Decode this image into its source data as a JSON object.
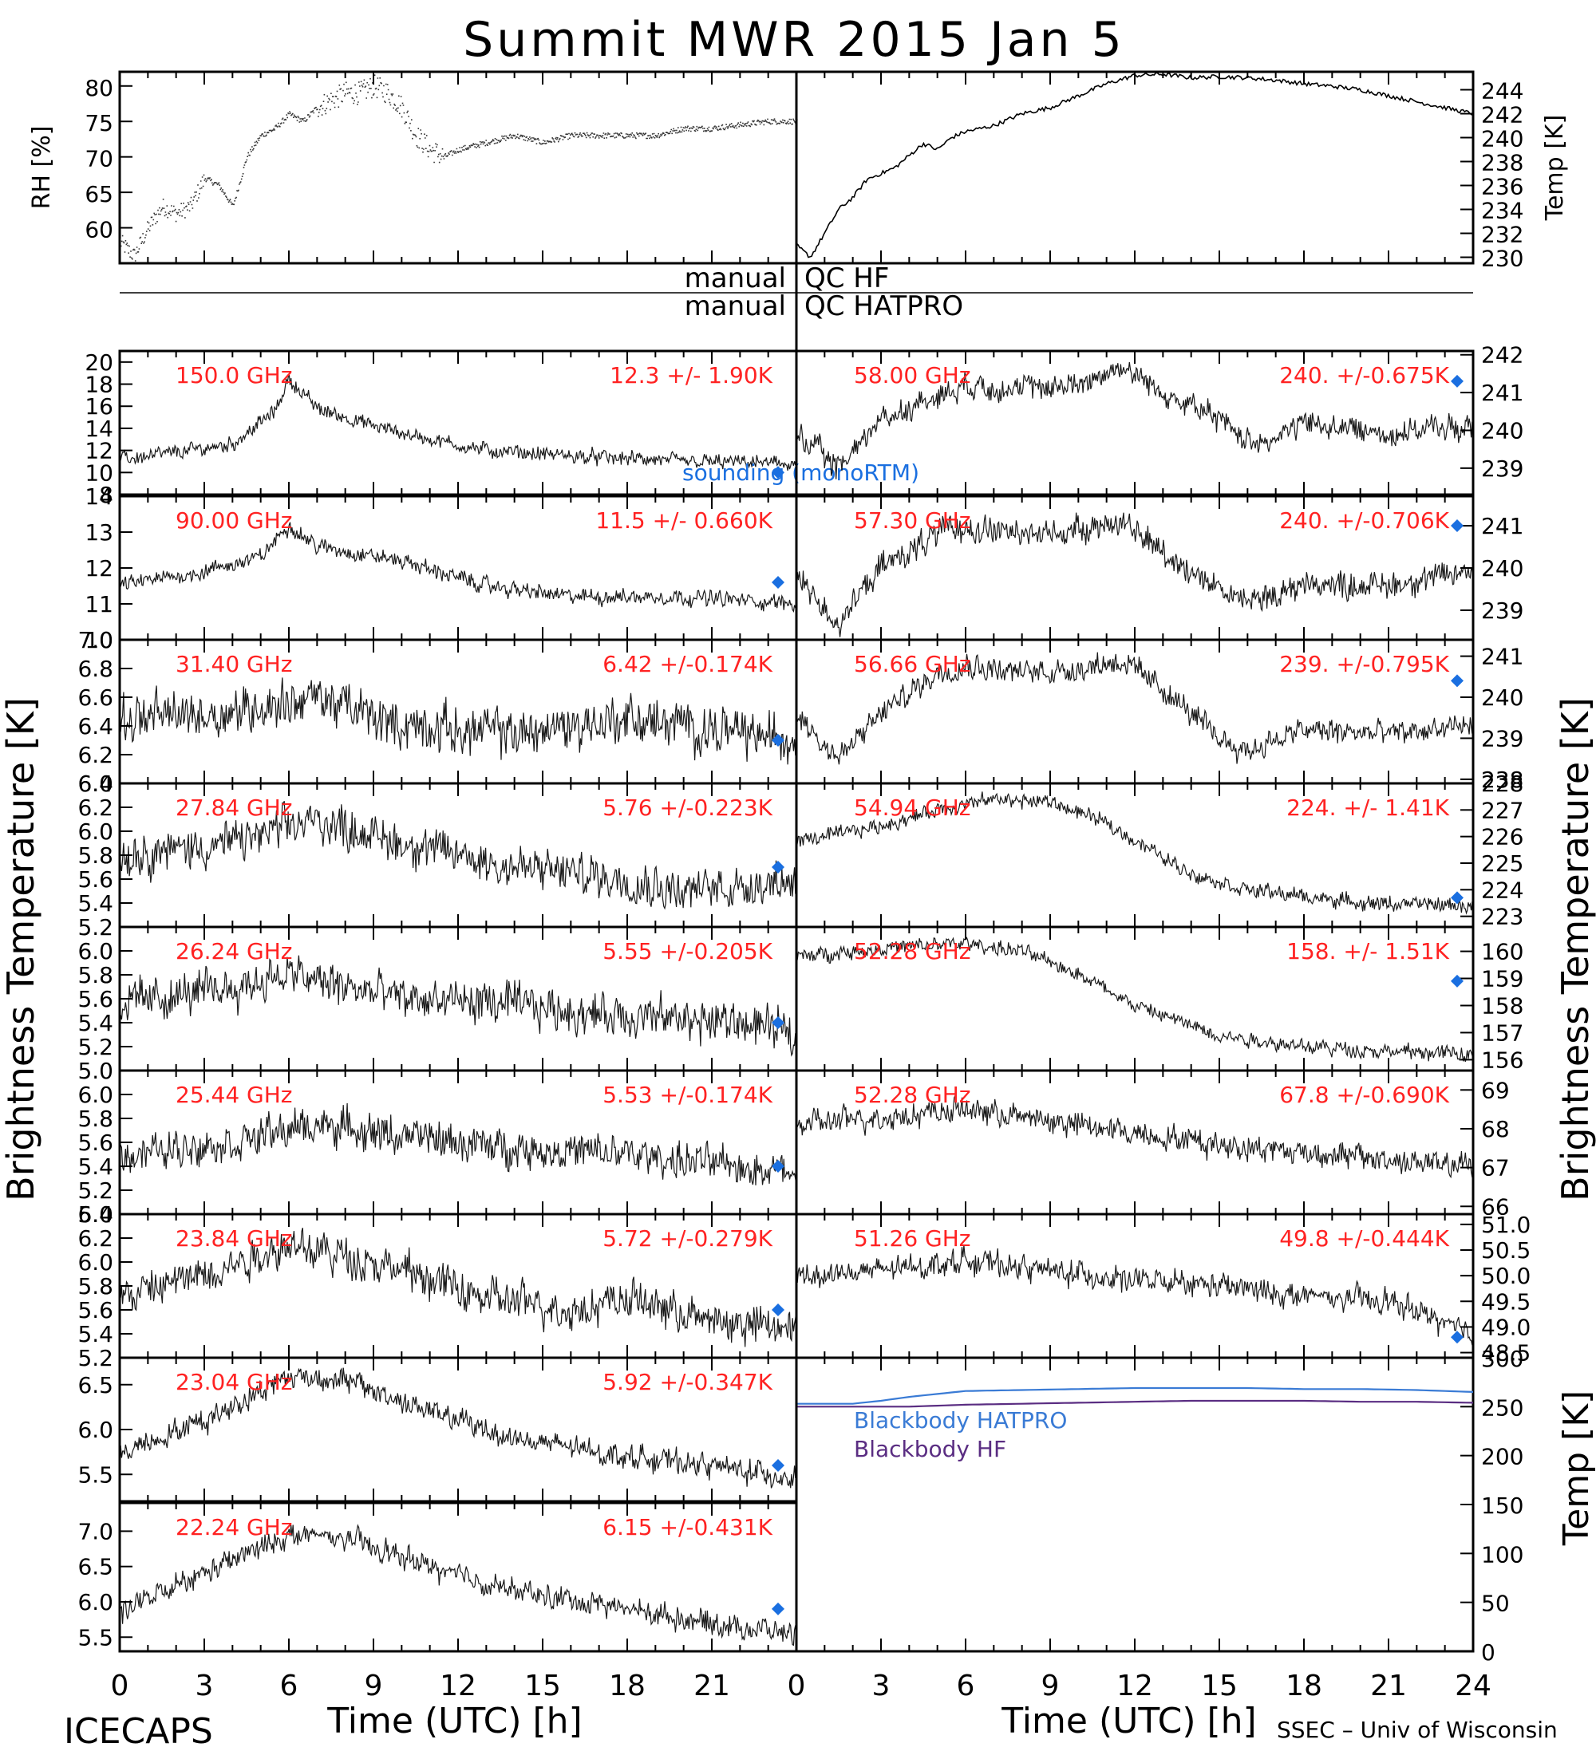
{
  "figure": {
    "title": "Summit MWR 2015 Jan  5",
    "left_footer": "ICECAPS",
    "right_footer": "SSEC – Univ of Wisconsin",
    "x_label": "Time (UTC) [h]",
    "bt_label": "Brightness Temperature [K]",
    "bb_temp_label": "Temp [K]",
    "qc_hf_left": "manual",
    "qc_hf_right": "QC HF",
    "qc_hatpro_left": "manual",
    "qc_hatpro_right": "QC HATPRO",
    "sounding_label": "sounding (monoRTM)",
    "colors": {
      "data": "#000000",
      "annotation": "#ff2222",
      "sounding": "#1a6fe0",
      "hatpro": "#3a7bd5",
      "hf": "#5a2d82"
    }
  },
  "chart_data": [
    {
      "id": "rh",
      "type": "scatter",
      "ylabel": "RH [%]",
      "ylim": [
        55,
        82
      ],
      "yticks": [
        60,
        65,
        70,
        75,
        80
      ],
      "xlim": [
        0,
        24
      ],
      "x": [
        0,
        0.5,
        1,
        1.5,
        2,
        2.5,
        3,
        3.5,
        4,
        4.5,
        5,
        5.5,
        6,
        6.5,
        7,
        7.5,
        8,
        8.5,
        9,
        9.5,
        10,
        10.5,
        11,
        11.5,
        12,
        13,
        14,
        15,
        16,
        17,
        18,
        19,
        20,
        21,
        22,
        23,
        24
      ],
      "values": [
        58,
        56,
        60,
        63,
        62,
        63,
        67,
        66,
        63,
        70,
        73,
        74,
        76,
        75,
        77,
        78,
        79,
        79,
        80,
        79,
        77,
        73,
        71,
        70,
        71,
        72,
        73,
        72,
        73,
        73,
        73,
        73,
        74,
        74,
        74.5,
        75,
        75
      ]
    },
    {
      "id": "temp",
      "type": "line",
      "ylabel": "Temp [K]",
      "ylim": [
        229.5,
        245.5
      ],
      "yticks": [
        230,
        232,
        234,
        236,
        238,
        240,
        242,
        244
      ],
      "xlim": [
        0,
        24
      ],
      "x": [
        0,
        0.5,
        1,
        1.5,
        2,
        2.5,
        3,
        3.5,
        4,
        4.5,
        5,
        5.5,
        6,
        7,
        8,
        9,
        10,
        11,
        12,
        13,
        14,
        15,
        16,
        17,
        18,
        19,
        20,
        21,
        22,
        23,
        24
      ],
      "values": [
        231,
        230,
        232,
        234,
        235,
        236.5,
        237,
        237.5,
        238.5,
        239.5,
        239,
        240,
        240.5,
        241,
        242,
        242.5,
        243.5,
        244.5,
        245.2,
        245.3,
        245,
        245.1,
        245,
        244.8,
        244.5,
        244.3,
        244,
        243.5,
        243,
        242.5,
        242
      ]
    },
    {
      "id": "bt_hf",
      "type": "bar",
      "ylabel": "Brightness Temperature [K]",
      "categories": [
        "150.0 GHz",
        "90.00 GHz",
        "31.40 GHz",
        "27.84 GHz",
        "26.24 GHz",
        "25.44 GHz",
        "23.84 GHz",
        "23.04 GHz",
        "22.24 GHz"
      ],
      "series": [
        {
          "name": "mean",
          "values": [
            12.3,
            11.5,
            6.42,
            5.76,
            5.55,
            5.53,
            5.72,
            5.92,
            6.15
          ]
        },
        {
          "name": "std",
          "values": [
            1.9,
            0.66,
            0.174,
            0.223,
            0.205,
            0.174,
            0.279,
            0.347,
            0.431
          ]
        }
      ]
    },
    {
      "id": "bt_hatpro",
      "type": "bar",
      "ylabel": "Brightness Temperature [K]",
      "categories": [
        "58.00 GHz",
        "57.30 GHz",
        "56.66 GHz",
        "54.94 GHz",
        "52.28 GHz",
        "52.28 GHz",
        "51.26 GHz"
      ],
      "series": [
        {
          "name": "mean",
          "values": [
            240,
            240,
            239,
            224,
            158,
            67.8,
            49.8
          ]
        },
        {
          "name": "std",
          "values": [
            0.675,
            0.706,
            0.795,
            1.41,
            1.51,
            0.69,
            0.444
          ]
        }
      ]
    },
    {
      "id": "blackbody",
      "type": "line",
      "ylabel": "Temp [K]",
      "ylim": [
        0,
        300
      ],
      "yticks": [
        0,
        50,
        100,
        150,
        200,
        250,
        300
      ],
      "xlim": [
        0,
        24
      ],
      "x": [
        0,
        1,
        2,
        3,
        4,
        5,
        6,
        8,
        10,
        12,
        14,
        16,
        18,
        20,
        22,
        24
      ],
      "series": [
        {
          "name": "Blackbody HATPRO",
          "values": [
            253,
            253,
            253,
            256,
            260,
            263,
            266,
            267,
            268,
            269,
            269,
            269,
            268,
            268,
            267,
            265
          ]
        },
        {
          "name": "Blackbody HF",
          "values": [
            250,
            250,
            250,
            250,
            250,
            251,
            252,
            253,
            254,
            255,
            256,
            256,
            256,
            255,
            255,
            254
          ]
        }
      ]
    }
  ],
  "panels_left": [
    {
      "freq": "150.0 GHz",
      "stat": "12.3 +/-  1.90K",
      "ylim": [
        8,
        21
      ],
      "yticks": [
        "8",
        "10",
        "12",
        "14",
        "16",
        "18",
        "20"
      ],
      "anchors": [
        [
          0,
          11.2
        ],
        [
          2,
          11.8
        ],
        [
          4,
          12.6
        ],
        [
          5.5,
          15.5
        ],
        [
          6,
          18.5
        ],
        [
          7,
          15.8
        ],
        [
          9,
          14.2
        ],
        [
          11,
          13
        ],
        [
          13,
          12
        ],
        [
          16,
          11.5
        ],
        [
          20,
          11
        ],
        [
          24,
          10.8
        ]
      ],
      "noise": 0.6,
      "sounding": 10.0
    },
    {
      "freq": "90.00 GHz",
      "stat": "11.5 +/- 0.660K",
      "ylim": [
        10,
        14
      ],
      "yticks": [
        "10",
        "11",
        "12",
        "13",
        "14"
      ],
      "anchors": [
        [
          0,
          11.5
        ],
        [
          3,
          11.9
        ],
        [
          5,
          12.3
        ],
        [
          6,
          13.2
        ],
        [
          7,
          12.6
        ],
        [
          10,
          12.2
        ],
        [
          13,
          11.5
        ],
        [
          16,
          11.2
        ],
        [
          20,
          11.2
        ],
        [
          24,
          11
        ]
      ],
      "noise": 0.2,
      "sounding": 11.6
    },
    {
      "freq": "31.40 GHz",
      "stat": "6.42 +/-0.174K",
      "ylim": [
        6.0,
        7.0
      ],
      "yticks": [
        "6.0",
        "6.2",
        "6.4",
        "6.6",
        "6.8",
        "7.0"
      ],
      "anchors": [
        [
          0,
          6.45
        ],
        [
          4,
          6.5
        ],
        [
          7,
          6.6
        ],
        [
          10,
          6.4
        ],
        [
          14,
          6.35
        ],
        [
          18,
          6.45
        ],
        [
          22,
          6.35
        ],
        [
          24,
          6.3
        ]
      ],
      "noise": 0.15,
      "sounding": 6.3
    },
    {
      "freq": "27.84 GHz",
      "stat": "5.76 +/-0.223K",
      "ylim": [
        5.2,
        6.4
      ],
      "yticks": [
        "5.2",
        "5.4",
        "5.6",
        "5.8",
        "6.0",
        "6.2",
        "6.4"
      ],
      "anchors": [
        [
          0,
          5.8
        ],
        [
          4,
          5.9
        ],
        [
          7,
          6.1
        ],
        [
          10,
          5.9
        ],
        [
          14,
          5.7
        ],
        [
          18,
          5.6
        ],
        [
          20,
          5.5
        ],
        [
          24,
          5.6
        ]
      ],
      "noise": 0.16,
      "sounding": 5.7
    },
    {
      "freq": "26.24 GHz",
      "stat": "5.55 +/-0.205K",
      "ylim": [
        5.0,
        6.2
      ],
      "yticks": [
        "5.0",
        "5.2",
        "5.4",
        "5.6",
        "5.8",
        "6.0"
      ],
      "anchors": [
        [
          0,
          5.55
        ],
        [
          4,
          5.7
        ],
        [
          6,
          5.8
        ],
        [
          10,
          5.6
        ],
        [
          14,
          5.55
        ],
        [
          18,
          5.45
        ],
        [
          22,
          5.4
        ],
        [
          24,
          5.3
        ]
      ],
      "noise": 0.16,
      "sounding": 5.4
    },
    {
      "freq": "25.44 GHz",
      "stat": "5.53 +/-0.174K",
      "ylim": [
        5.0,
        6.2
      ],
      "yticks": [
        "5.0",
        "5.2",
        "5.4",
        "5.6",
        "5.8",
        "6.0"
      ],
      "anchors": [
        [
          0,
          5.5
        ],
        [
          4,
          5.6
        ],
        [
          7,
          5.75
        ],
        [
          10,
          5.65
        ],
        [
          14,
          5.55
        ],
        [
          18,
          5.5
        ],
        [
          22,
          5.4
        ],
        [
          24,
          5.35
        ]
      ],
      "noise": 0.14,
      "sounding": 5.4
    },
    {
      "freq": "23.84 GHz",
      "stat": "5.72 +/-0.279K",
      "ylim": [
        5.2,
        6.4
      ],
      "yticks": [
        "5.2",
        "5.4",
        "5.6",
        "5.8",
        "6.0",
        "6.2",
        "6.4"
      ],
      "anchors": [
        [
          0,
          5.7
        ],
        [
          3,
          5.9
        ],
        [
          6,
          6.15
        ],
        [
          9,
          6.0
        ],
        [
          13,
          5.7
        ],
        [
          16,
          5.6
        ],
        [
          18,
          5.7
        ],
        [
          21,
          5.5
        ],
        [
          24,
          5.45
        ]
      ],
      "noise": 0.15,
      "sounding": 5.6
    },
    {
      "freq": "23.04 GHz",
      "stat": "5.92 +/-0.347K",
      "ylim": [
        5.2,
        6.8
      ],
      "yticks": [
        "5.5",
        "6.0",
        "6.5"
      ],
      "anchors": [
        [
          0,
          5.75
        ],
        [
          3,
          6.1
        ],
        [
          6,
          6.6
        ],
        [
          8,
          6.55
        ],
        [
          11,
          6.2
        ],
        [
          14,
          5.9
        ],
        [
          18,
          5.7
        ],
        [
          21,
          5.6
        ],
        [
          24,
          5.45
        ]
      ],
      "noise": 0.12,
      "sounding": 5.6
    },
    {
      "freq": "22.24 GHz",
      "stat": "6.15 +/-0.431K",
      "ylim": [
        5.3,
        7.4
      ],
      "yticks": [
        "5.5",
        "6.0",
        "6.5",
        "7.0"
      ],
      "anchors": [
        [
          0,
          5.85
        ],
        [
          3,
          6.4
        ],
        [
          6,
          6.95
        ],
        [
          8,
          6.9
        ],
        [
          11,
          6.5
        ],
        [
          14,
          6.15
        ],
        [
          18,
          5.9
        ],
        [
          21,
          5.7
        ],
        [
          24,
          5.55
        ]
      ],
      "noise": 0.15,
      "sounding": 5.9
    }
  ],
  "panels_right": [
    {
      "freq": "58.00 GHz",
      "stat": "240. +/-0.675K",
      "ylim": [
        238.3,
        242.1
      ],
      "yticks": [
        "239",
        "240",
        "241",
        "242"
      ],
      "anchors": [
        [
          0,
          239.9
        ],
        [
          1.5,
          239
        ],
        [
          3,
          240.3
        ],
        [
          5,
          240.9
        ],
        [
          6,
          241.2
        ],
        [
          8,
          241.1
        ],
        [
          10,
          241.2
        ],
        [
          11.5,
          241.7
        ],
        [
          13,
          241
        ],
        [
          15,
          240.3
        ],
        [
          16,
          239.7
        ],
        [
          17,
          239.8
        ],
        [
          18,
          240.2
        ],
        [
          21,
          239.9
        ],
        [
          23,
          240.1
        ],
        [
          24,
          240
        ]
      ],
      "noise": 0.3,
      "sounding": 241.3
    },
    {
      "freq": "57.30 GHz",
      "stat": "240. +/-0.706K",
      "ylim": [
        238.3,
        241.7
      ],
      "yticks": [
        "239",
        "240",
        "241"
      ],
      "anchors": [
        [
          0,
          239.8
        ],
        [
          1.5,
          238.7
        ],
        [
          3,
          240
        ],
        [
          5,
          240.8
        ],
        [
          6,
          241
        ],
        [
          8,
          240.8
        ],
        [
          10,
          240.9
        ],
        [
          11.5,
          241.1
        ],
        [
          13,
          240.4
        ],
        [
          15,
          239.5
        ],
        [
          16,
          239.2
        ],
        [
          18,
          239.6
        ],
        [
          21,
          239.6
        ],
        [
          24,
          239.9
        ]
      ],
      "noise": 0.3,
      "sounding": 241.0
    },
    {
      "freq": "56.66 GHz",
      "stat": "239. +/-0.795K",
      "ylim": [
        237.9,
        241.4
      ],
      "yticks": [
        "238",
        "239",
        "240",
        "241"
      ],
      "anchors": [
        [
          0,
          239.6
        ],
        [
          1.5,
          238.5
        ],
        [
          3,
          239.6
        ],
        [
          5,
          240.6
        ],
        [
          6,
          240.8
        ],
        [
          8,
          240.6
        ],
        [
          10,
          240.7
        ],
        [
          11.5,
          240.9
        ],
        [
          13,
          240.2
        ],
        [
          15,
          239
        ],
        [
          16,
          238.7
        ],
        [
          18,
          239.2
        ],
        [
          21,
          239.1
        ],
        [
          24,
          239.3
        ]
      ],
      "noise": 0.28,
      "sounding": 240.4
    },
    {
      "freq": "54.94 GHz",
      "stat": "224. +/- 1.41K",
      "ylim": [
        222.6,
        228
      ],
      "yticks": [
        "223",
        "224",
        "225",
        "226",
        "227",
        "228"
      ],
      "anchors": [
        [
          0,
          225.8
        ],
        [
          3,
          226.4
        ],
        [
          5,
          227
        ],
        [
          7,
          227.4
        ],
        [
          9,
          227.3
        ],
        [
          11,
          226.5
        ],
        [
          14,
          224.6
        ],
        [
          16,
          224
        ],
        [
          20,
          223.5
        ],
        [
          24,
          223.4
        ]
      ],
      "noise": 0.25,
      "sounding": 223.7
    },
    {
      "freq": "52.28 GHz",
      "stat": "158. +/- 1.51K",
      "ylim": [
        155.6,
        160.9
      ],
      "yticks": [
        "156",
        "157",
        "158",
        "159",
        "160"
      ],
      "anchors": [
        [
          0,
          159.8
        ],
        [
          3,
          160.1
        ],
        [
          6,
          160.3
        ],
        [
          8,
          160
        ],
        [
          10,
          159.2
        ],
        [
          12,
          158
        ],
        [
          15,
          156.9
        ],
        [
          18,
          156.5
        ],
        [
          21,
          156.3
        ],
        [
          24,
          156.2
        ]
      ],
      "noise": 0.25,
      "sounding": 158.9
    },
    {
      "freq": "52.28 GHz",
      "stat": "67.8 +/-0.690K",
      "ylim": [
        65.8,
        69.5
      ],
      "yticks": [
        "66",
        "67",
        "68",
        "69"
      ],
      "anchors": [
        [
          0,
          68.1
        ],
        [
          3,
          68.3
        ],
        [
          6,
          68.5
        ],
        [
          9,
          68.2
        ],
        [
          12,
          67.9
        ],
        [
          15,
          67.6
        ],
        [
          18,
          67.4
        ],
        [
          21,
          67.2
        ],
        [
          24,
          67
        ]
      ],
      "noise": 0.3,
      "sounding": null
    },
    {
      "freq": "51.26 GHz",
      "stat": "49.8 +/-0.444K",
      "ylim": [
        48.4,
        51.2
      ],
      "yticks": [
        "48.5",
        "49.0",
        "49.5",
        "50.0",
        "50.5",
        "51.0"
      ],
      "anchors": [
        [
          0,
          50
        ],
        [
          3,
          50.1
        ],
        [
          6,
          50.3
        ],
        [
          9,
          50.1
        ],
        [
          12,
          49.9
        ],
        [
          15,
          49.8
        ],
        [
          18,
          49.6
        ],
        [
          21,
          49.5
        ],
        [
          23,
          49.1
        ],
        [
          24,
          48.8
        ]
      ],
      "noise": 0.22,
      "sounding": 48.8
    }
  ],
  "x_ticks": [
    "0",
    "3",
    "6",
    "9",
    "12",
    "15",
    "18",
    "21",
    "24"
  ]
}
